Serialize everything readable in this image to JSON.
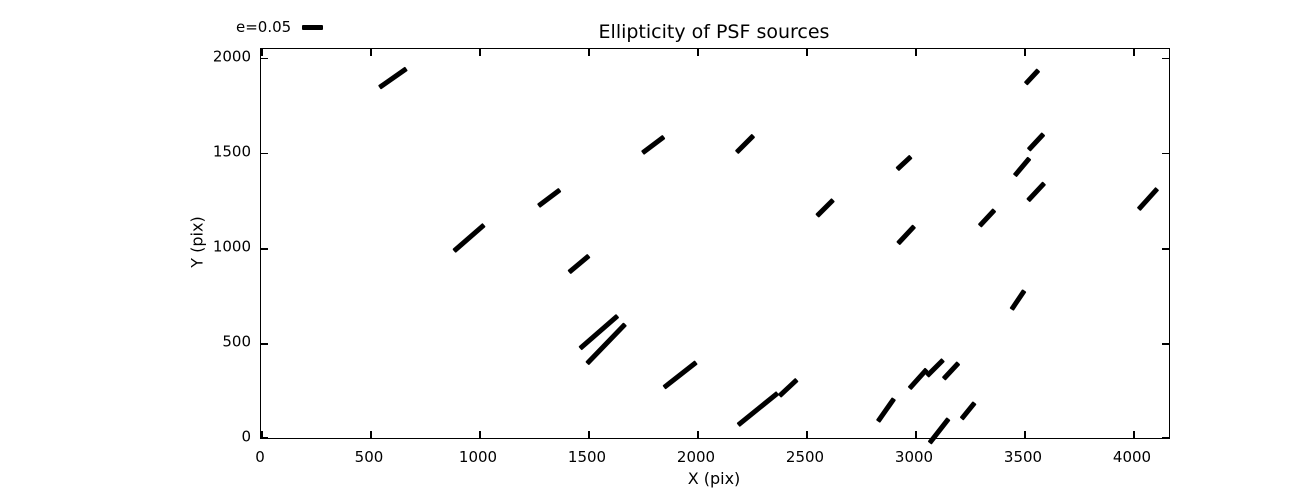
{
  "figure": {
    "background_color": "#ffffff",
    "foreground_color": "#000000"
  },
  "legend": {
    "label": "e=0.05",
    "e_reference": 0.05
  },
  "chart_data": {
    "type": "scatter",
    "title": "Ellipticity of PSF sources",
    "xlabel": "X (pix)",
    "ylabel": "Y (pix)",
    "xlim": [
      0,
      4165
    ],
    "ylim": [
      0,
      2047
    ],
    "xticks": [
      0,
      500,
      1000,
      1500,
      2000,
      2500,
      3000,
      3500,
      4000
    ],
    "yticks": [
      0,
      500,
      1000,
      1500,
      2000
    ],
    "grid": false,
    "legend_position": "upper-left-outside",
    "legend": {
      "label": "e=0.05",
      "e": 0.05
    },
    "marker_description": "black line segments (whiskers); position = source centroid in pixels, length proportional to ellipticity e (legend bar = e of 0.05), angle = position angle counterclockwise from +x",
    "sources": [
      {
        "x": 605,
        "y": 1895,
        "e": 0.079,
        "angle": 35
      },
      {
        "x": 1800,
        "y": 1540,
        "e": 0.063,
        "angle": 37
      },
      {
        "x": 2220,
        "y": 1545,
        "e": 0.057,
        "angle": 45
      },
      {
        "x": 1320,
        "y": 1265,
        "e": 0.063,
        "angle": 37
      },
      {
        "x": 955,
        "y": 1055,
        "e": 0.095,
        "angle": 41
      },
      {
        "x": 1460,
        "y": 915,
        "e": 0.062,
        "angle": 40
      },
      {
        "x": 2585,
        "y": 1210,
        "e": 0.054,
        "angle": 45
      },
      {
        "x": 2950,
        "y": 1450,
        "e": 0.045,
        "angle": 43
      },
      {
        "x": 2960,
        "y": 1070,
        "e": 0.056,
        "angle": 47
      },
      {
        "x": 3535,
        "y": 1900,
        "e": 0.045,
        "angle": 47
      },
      {
        "x": 3555,
        "y": 1560,
        "e": 0.052,
        "angle": 47
      },
      {
        "x": 3490,
        "y": 1425,
        "e": 0.054,
        "angle": 50
      },
      {
        "x": 3555,
        "y": 1295,
        "e": 0.056,
        "angle": 47
      },
      {
        "x": 4070,
        "y": 1260,
        "e": 0.067,
        "angle": 48
      },
      {
        "x": 3330,
        "y": 1160,
        "e": 0.052,
        "angle": 47
      },
      {
        "x": 3470,
        "y": 725,
        "e": 0.055,
        "angle": 56
      },
      {
        "x": 1550,
        "y": 560,
        "e": 0.12,
        "angle": 41
      },
      {
        "x": 1580,
        "y": 497,
        "e": 0.13,
        "angle": 46
      },
      {
        "x": 1920,
        "y": 330,
        "e": 0.097,
        "angle": 38
      },
      {
        "x": 2280,
        "y": 153,
        "e": 0.122,
        "angle": 39
      },
      {
        "x": 2415,
        "y": 263,
        "e": 0.056,
        "angle": 43
      },
      {
        "x": 2867,
        "y": 150,
        "e": 0.067,
        "angle": 55
      },
      {
        "x": 3012,
        "y": 313,
        "e": 0.061,
        "angle": 48
      },
      {
        "x": 3092,
        "y": 368,
        "e": 0.054,
        "angle": 45
      },
      {
        "x": 3167,
        "y": 352,
        "e": 0.052,
        "angle": 47
      },
      {
        "x": 3241,
        "y": 142,
        "e": 0.049,
        "angle": 51
      },
      {
        "x": 3108,
        "y": 35,
        "e": 0.073,
        "angle": 52
      }
    ]
  }
}
